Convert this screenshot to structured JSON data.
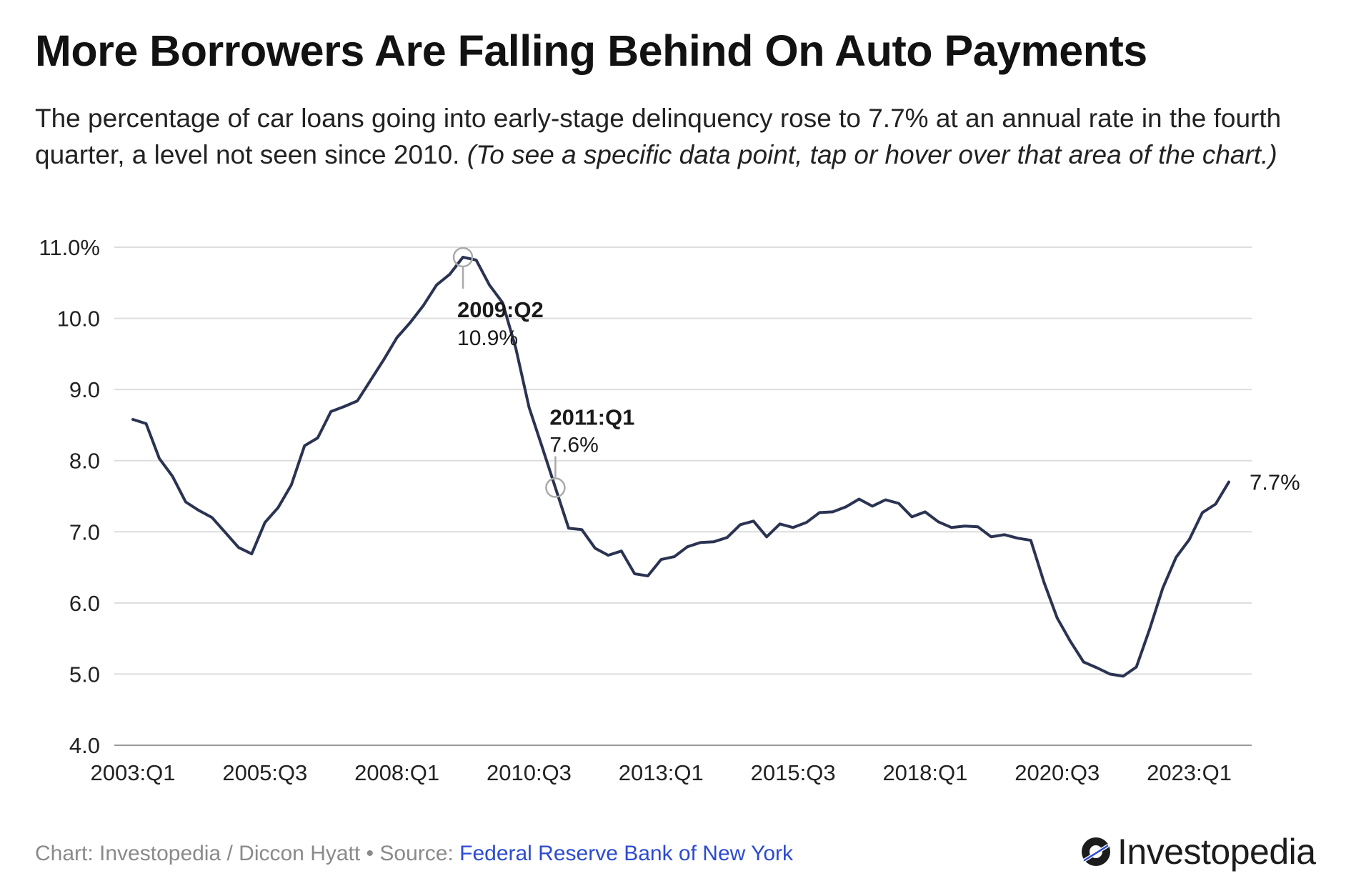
{
  "header": {
    "title": "More Borrowers Are Falling Behind On Auto Payments",
    "subtitle": "The percentage of car loans going into early-stage delinquency rose to 7.7% at an annual rate in the fourth quarter, a level not seen since 2010.",
    "note": "(To see a specific data point, tap or hover over that area of the chart.)"
  },
  "footer": {
    "credit": "Chart: Investopedia / Diccon Hyatt • Source: ",
    "source": "Federal Reserve Bank of New York",
    "logo_text": "Investopedia"
  },
  "colors": {
    "line": "#2b3352",
    "grid": "#dddddd",
    "link": "#2c4bd1"
  },
  "chart_data": {
    "type": "line",
    "title": "More Borrowers Are Falling Behind On Auto Payments",
    "xlabel": "",
    "ylabel": "",
    "ylim": [
      4.0,
      11.0
    ],
    "yticks": [
      "11.0%",
      "10.0",
      "9.0",
      "8.0",
      "7.0",
      "6.0",
      "5.0",
      "4.0"
    ],
    "xticks": [
      "2003:Q1",
      "2005:Q3",
      "2008:Q1",
      "2010:Q3",
      "2013:Q1",
      "2015:Q3",
      "2018:Q1",
      "2020:Q3",
      "2023:Q1"
    ],
    "grid": true,
    "x": [
      "2003:Q1",
      "2003:Q2",
      "2003:Q3",
      "2003:Q4",
      "2004:Q1",
      "2004:Q2",
      "2004:Q3",
      "2004:Q4",
      "2005:Q1",
      "2005:Q2",
      "2005:Q3",
      "2005:Q4",
      "2006:Q1",
      "2006:Q2",
      "2006:Q3",
      "2006:Q4",
      "2007:Q1",
      "2007:Q2",
      "2007:Q3",
      "2007:Q4",
      "2008:Q1",
      "2008:Q2",
      "2008:Q3",
      "2008:Q4",
      "2009:Q1",
      "2009:Q2",
      "2009:Q3",
      "2009:Q4",
      "2010:Q1",
      "2010:Q2",
      "2010:Q3",
      "2010:Q4",
      "2011:Q1",
      "2011:Q2",
      "2011:Q3",
      "2011:Q4",
      "2012:Q1",
      "2012:Q2",
      "2012:Q3",
      "2012:Q4",
      "2013:Q1",
      "2013:Q2",
      "2013:Q3",
      "2013:Q4",
      "2014:Q1",
      "2014:Q2",
      "2014:Q3",
      "2014:Q4",
      "2015:Q1",
      "2015:Q2",
      "2015:Q3",
      "2015:Q4",
      "2016:Q1",
      "2016:Q2",
      "2016:Q3",
      "2016:Q4",
      "2017:Q1",
      "2017:Q2",
      "2017:Q3",
      "2017:Q4",
      "2018:Q1",
      "2018:Q2",
      "2018:Q3",
      "2018:Q4",
      "2019:Q1",
      "2019:Q2",
      "2019:Q3",
      "2019:Q4",
      "2020:Q1",
      "2020:Q2",
      "2020:Q3",
      "2020:Q4",
      "2021:Q1",
      "2021:Q2",
      "2021:Q3",
      "2021:Q4",
      "2022:Q1",
      "2022:Q2",
      "2022:Q3",
      "2022:Q4",
      "2023:Q1",
      "2023:Q2",
      "2023:Q3",
      "2023:Q4"
    ],
    "series": [
      {
        "values": [
          8.58,
          8.52,
          8.03,
          7.78,
          7.42,
          7.3,
          7.2,
          6.99,
          6.78,
          6.69,
          7.13,
          7.34,
          7.66,
          8.21,
          8.32,
          8.69,
          8.76,
          8.84,
          9.13,
          9.42,
          9.73,
          9.94,
          10.18,
          10.47,
          10.62,
          10.86,
          10.82,
          10.47,
          10.22,
          9.58,
          8.75,
          8.19,
          7.62,
          7.05,
          7.03,
          6.77,
          6.67,
          6.73,
          6.41,
          6.38,
          6.61,
          6.65,
          6.79,
          6.85,
          6.86,
          6.92,
          7.1,
          7.15,
          6.93,
          7.11,
          7.06,
          7.13,
          7.27,
          7.28,
          7.35,
          7.46,
          7.36,
          7.45,
          7.4,
          7.21,
          7.28,
          7.14,
          7.06,
          7.08,
          7.07,
          6.93,
          6.96,
          6.91,
          6.88,
          6.29,
          5.79,
          5.46,
          5.17,
          5.09,
          5.0,
          4.97,
          5.1,
          5.63,
          6.21,
          6.64,
          6.89,
          7.27,
          7.39,
          7.7
        ]
      }
    ],
    "annotations": [
      {
        "label": "2009:Q2",
        "value": "10.9%"
      },
      {
        "label": "2011:Q1",
        "value": "7.6%"
      },
      {
        "label": "7.7%"
      }
    ]
  }
}
